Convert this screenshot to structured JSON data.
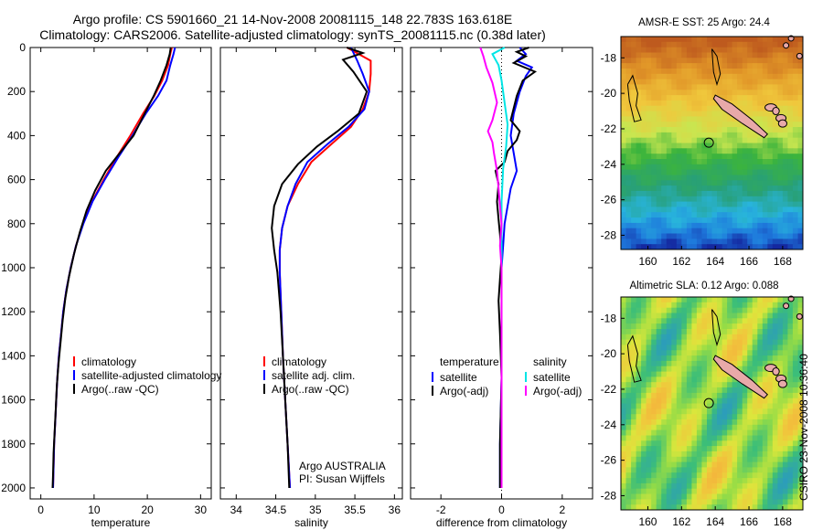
{
  "header": {
    "line1": "Argo profile: CS 5901660_21 14-Nov-2008 20081115_148 22.783S 163.618E",
    "line2": "Climatology: CARS2006. Satellite-adjusted climatology: synTS_20081115.nc (0.38d later)"
  },
  "side_label": "CSIRO 23-Nov-2008 10:36:40",
  "colors": {
    "climatology": "#ff0000",
    "satellite": "#0000ff",
    "argo": "#000000",
    "sat_t_diff": "#00e5e5",
    "argo_t_diff": "#ff00ff"
  },
  "chart_data": [
    {
      "type": "line",
      "xlabel": "temperature",
      "ylabel": "",
      "xlim": [
        -2,
        32
      ],
      "ylim": [
        2050,
        0
      ],
      "xticks": [
        0,
        10,
        20,
        30
      ],
      "yticks": [
        0,
        200,
        400,
        600,
        800,
        1000,
        1200,
        1400,
        1600,
        1800,
        2000
      ],
      "legend": {
        "entries": [
          "climatology",
          "satellite-adjusted climatology",
          "Argo(..raw -QC)"
        ],
        "placement": "lower-center"
      },
      "series": [
        {
          "name": "climatology",
          "color": "#ff0000",
          "points": [
            [
              24.6,
              0
            ],
            [
              24.3,
              30
            ],
            [
              23.9,
              80
            ],
            [
              22.8,
              150
            ],
            [
              21.3,
              220
            ],
            [
              19.2,
              300
            ],
            [
              16.8,
              400
            ],
            [
              14.2,
              500
            ],
            [
              11.8,
              600
            ],
            [
              9.6,
              700
            ],
            [
              7.9,
              800
            ],
            [
              6.6,
              900
            ],
            [
              5.6,
              1000
            ],
            [
              4.8,
              1100
            ],
            [
              4.2,
              1200
            ],
            [
              3.8,
              1300
            ],
            [
              3.4,
              1400
            ],
            [
              3.1,
              1500
            ],
            [
              2.9,
              1600
            ],
            [
              2.7,
              1700
            ],
            [
              2.5,
              1800
            ],
            [
              2.4,
              1900
            ],
            [
              2.3,
              2000
            ]
          ]
        },
        {
          "name": "satellite-adjusted climatology",
          "color": "#0000ff",
          "points": [
            [
              25.2,
              0
            ],
            [
              24.9,
              30
            ],
            [
              24.3,
              80
            ],
            [
              23.6,
              150
            ],
            [
              22.0,
              220
            ],
            [
              19.7,
              300
            ],
            [
              17.2,
              400
            ],
            [
              14.5,
              500
            ],
            [
              12.0,
              600
            ],
            [
              9.7,
              700
            ],
            [
              8.0,
              800
            ],
            [
              6.6,
              900
            ],
            [
              5.6,
              1000
            ],
            [
              4.8,
              1100
            ],
            [
              4.2,
              1200
            ],
            [
              3.8,
              1300
            ],
            [
              3.4,
              1400
            ],
            [
              3.1,
              1500
            ],
            [
              2.9,
              1600
            ],
            [
              2.7,
              1700
            ],
            [
              2.5,
              1800
            ],
            [
              2.4,
              1900
            ],
            [
              2.3,
              2000
            ]
          ]
        },
        {
          "name": "Argo(..raw -QC)",
          "color": "#000000",
          "points": [
            [
              24.4,
              0
            ],
            [
              24.2,
              30
            ],
            [
              23.6,
              80
            ],
            [
              22.5,
              150
            ],
            [
              21.2,
              220
            ],
            [
              19.5,
              300
            ],
            [
              17.4,
              400
            ],
            [
              14.8,
              480
            ],
            [
              12.2,
              560
            ],
            [
              10.2,
              650
            ],
            [
              8.6,
              740
            ],
            [
              7.3,
              840
            ],
            [
              6.2,
              940
            ],
            [
              5.3,
              1040
            ],
            [
              4.6,
              1140
            ],
            [
              4.1,
              1240
            ],
            [
              3.7,
              1340
            ],
            [
              3.3,
              1440
            ],
            [
              3.0,
              1540
            ],
            [
              2.8,
              1640
            ],
            [
              2.6,
              1740
            ],
            [
              2.4,
              1840
            ],
            [
              2.3,
              1940
            ],
            [
              2.2,
              2000
            ]
          ]
        }
      ],
      "annotations": []
    },
    {
      "type": "line",
      "xlabel": "salinity",
      "ylabel": "",
      "xlim": [
        33.8,
        36.1
      ],
      "ylim": [
        2050,
        0
      ],
      "xticks": [
        34,
        34.5,
        35,
        35.5,
        36
      ],
      "legend": {
        "entries": [
          "climatology",
          "satellite adj. clim.",
          "Argo(..raw -QC)"
        ],
        "placement": "lower-center"
      },
      "series": [
        {
          "name": "climatology",
          "color": "#ff0000",
          "points": [
            [
              35.4,
              0
            ],
            [
              35.7,
              60
            ],
            [
              35.7,
              120
            ],
            [
              35.68,
              200
            ],
            [
              35.6,
              280
            ],
            [
              35.45,
              360
            ],
            [
              35.2,
              440
            ],
            [
              34.95,
              520
            ],
            [
              34.78,
              620
            ],
            [
              34.65,
              720
            ],
            [
              34.58,
              820
            ],
            [
              34.55,
              920
            ],
            [
              34.55,
              1020
            ],
            [
              34.57,
              1200
            ],
            [
              34.59,
              1400
            ],
            [
              34.62,
              1600
            ],
            [
              34.65,
              1800
            ],
            [
              34.68,
              2000
            ]
          ]
        },
        {
          "name": "satellite adj. clim.",
          "color": "#0000ff",
          "points": [
            [
              35.45,
              0
            ],
            [
              35.53,
              60
            ],
            [
              35.6,
              120
            ],
            [
              35.68,
              200
            ],
            [
              35.62,
              280
            ],
            [
              35.42,
              360
            ],
            [
              35.15,
              440
            ],
            [
              34.9,
              520
            ],
            [
              34.75,
              620
            ],
            [
              34.65,
              720
            ],
            [
              34.58,
              820
            ],
            [
              34.55,
              920
            ],
            [
              34.55,
              1020
            ],
            [
              34.57,
              1200
            ],
            [
              34.59,
              1400
            ],
            [
              34.62,
              1600
            ],
            [
              34.65,
              1800
            ],
            [
              34.68,
              2000
            ]
          ]
        },
        {
          "name": "Argo(..raw -QC)",
          "color": "#000000",
          "points": [
            [
              35.4,
              0
            ],
            [
              35.6,
              25
            ],
            [
              35.35,
              55
            ],
            [
              35.48,
              110
            ],
            [
              35.65,
              200
            ],
            [
              35.55,
              300
            ],
            [
              35.28,
              380
            ],
            [
              35.02,
              450
            ],
            [
              34.78,
              530
            ],
            [
              34.58,
              620
            ],
            [
              34.48,
              720
            ],
            [
              34.45,
              820
            ],
            [
              34.48,
              920
            ],
            [
              34.52,
              1020
            ],
            [
              34.56,
              1200
            ],
            [
              34.59,
              1400
            ],
            [
              34.62,
              1600
            ],
            [
              34.65,
              1800
            ],
            [
              34.67,
              2000
            ]
          ]
        }
      ],
      "annotations": [
        "Argo AUSTRALIA",
        "PI: Susan Wijffels"
      ]
    },
    {
      "type": "line",
      "xlabel": "difference from climatology",
      "ylabel": "",
      "xlim": [
        -3.0,
        3.0
      ],
      "ylim": [
        2050,
        0
      ],
      "xticks": [
        -2,
        0,
        2
      ],
      "legend": {
        "columns": [
          {
            "header": "temperature",
            "entries": [
              "satellite",
              "Argo(-adj)"
            ]
          },
          {
            "header": "salinity",
            "entries": [
              "satellite",
              "Argo(-adj)"
            ]
          }
        ],
        "placement": "lower-center"
      },
      "series": [
        {
          "name": "temperature satellite",
          "color": "#0000ff",
          "points": [
            [
              0.6,
              0
            ],
            [
              0.8,
              30
            ],
            [
              0.5,
              60
            ],
            [
              1.0,
              90
            ],
            [
              0.8,
              130
            ],
            [
              0.6,
              200
            ],
            [
              0.4,
              300
            ],
            [
              0.3,
              400
            ],
            [
              0.4,
              480
            ],
            [
              0.5,
              560
            ],
            [
              0.3,
              640
            ],
            [
              0.2,
              720
            ],
            [
              0.1,
              800
            ],
            [
              0.05,
              900
            ],
            [
              0.0,
              1000
            ],
            [
              0.0,
              1200
            ],
            [
              0.0,
              1500
            ],
            [
              -0.05,
              1800
            ],
            [
              -0.05,
              2000
            ]
          ]
        },
        {
          "name": "temperature Argo(-adj)",
          "color": "#000000",
          "points": [
            [
              0.9,
              0
            ],
            [
              0.5,
              20
            ],
            [
              0.8,
              40
            ],
            [
              0.4,
              70
            ],
            [
              1.1,
              110
            ],
            [
              0.7,
              150
            ],
            [
              0.5,
              220
            ],
            [
              0.3,
              330
            ],
            [
              0.6,
              380
            ],
            [
              0.5,
              420
            ],
            [
              0.2,
              470
            ],
            [
              0.1,
              520
            ],
            [
              -0.2,
              560
            ],
            [
              -0.1,
              620
            ],
            [
              -0.15,
              700
            ],
            [
              -0.1,
              780
            ],
            [
              -0.05,
              850
            ],
            [
              0.0,
              950
            ],
            [
              -0.05,
              1050
            ],
            [
              -0.1,
              1150
            ],
            [
              -0.05,
              1300
            ],
            [
              0.0,
              1500
            ],
            [
              -0.05,
              1800
            ],
            [
              -0.05,
              2000
            ]
          ]
        },
        {
          "name": "salinity satellite",
          "color": "#00e5e5",
          "points": [
            [
              0.1,
              0
            ],
            [
              -0.3,
              30
            ],
            [
              -0.1,
              80
            ],
            [
              0.0,
              150
            ],
            [
              0.1,
              250
            ],
            [
              0.2,
              350
            ],
            [
              0.15,
              450
            ],
            [
              0.05,
              550
            ],
            [
              0.0,
              700
            ],
            [
              0.0,
              900
            ],
            [
              0.0,
              1100
            ],
            [
              0.0,
              1500
            ],
            [
              0.0,
              2000
            ]
          ]
        },
        {
          "name": "salinity Argo(-adj)",
          "color": "#ff00ff",
          "points": [
            [
              -0.7,
              0
            ],
            [
              -0.6,
              40
            ],
            [
              -0.5,
              90
            ],
            [
              -0.3,
              160
            ],
            [
              -0.15,
              250
            ],
            [
              -0.3,
              330
            ],
            [
              -0.45,
              380
            ],
            [
              -0.3,
              430
            ],
            [
              -0.25,
              480
            ],
            [
              -0.15,
              560
            ],
            [
              -0.1,
              640
            ],
            [
              -0.05,
              720
            ],
            [
              0.0,
              800
            ],
            [
              -0.05,
              900
            ],
            [
              0.0,
              1000
            ],
            [
              0.0,
              1200
            ],
            [
              0.0,
              1500
            ],
            [
              0.0,
              2000
            ]
          ]
        }
      ]
    },
    {
      "type": "heatmap",
      "title": "AMSR-E SST: 25 Argo: 24.4",
      "xlim": [
        158.4,
        169.2
      ],
      "ylim": [
        -28.8,
        -16.8
      ],
      "xticks": [
        160,
        162,
        164,
        166,
        168
      ],
      "yticks": [
        -18,
        -20,
        -22,
        -24,
        -26,
        -28
      ],
      "marker": {
        "lon": 163.618,
        "lat": -22.783
      }
    },
    {
      "type": "heatmap",
      "title": "Altimetric SLA: 0.12 Argo: 0.088",
      "xlim": [
        158.4,
        169.2
      ],
      "ylim": [
        -28.8,
        -16.8
      ],
      "xticks": [
        160,
        162,
        164,
        166,
        168
      ],
      "yticks": [
        -18,
        -20,
        -22,
        -24,
        -26,
        -28
      ],
      "marker": {
        "lon": 163.618,
        "lat": -22.783
      }
    }
  ]
}
